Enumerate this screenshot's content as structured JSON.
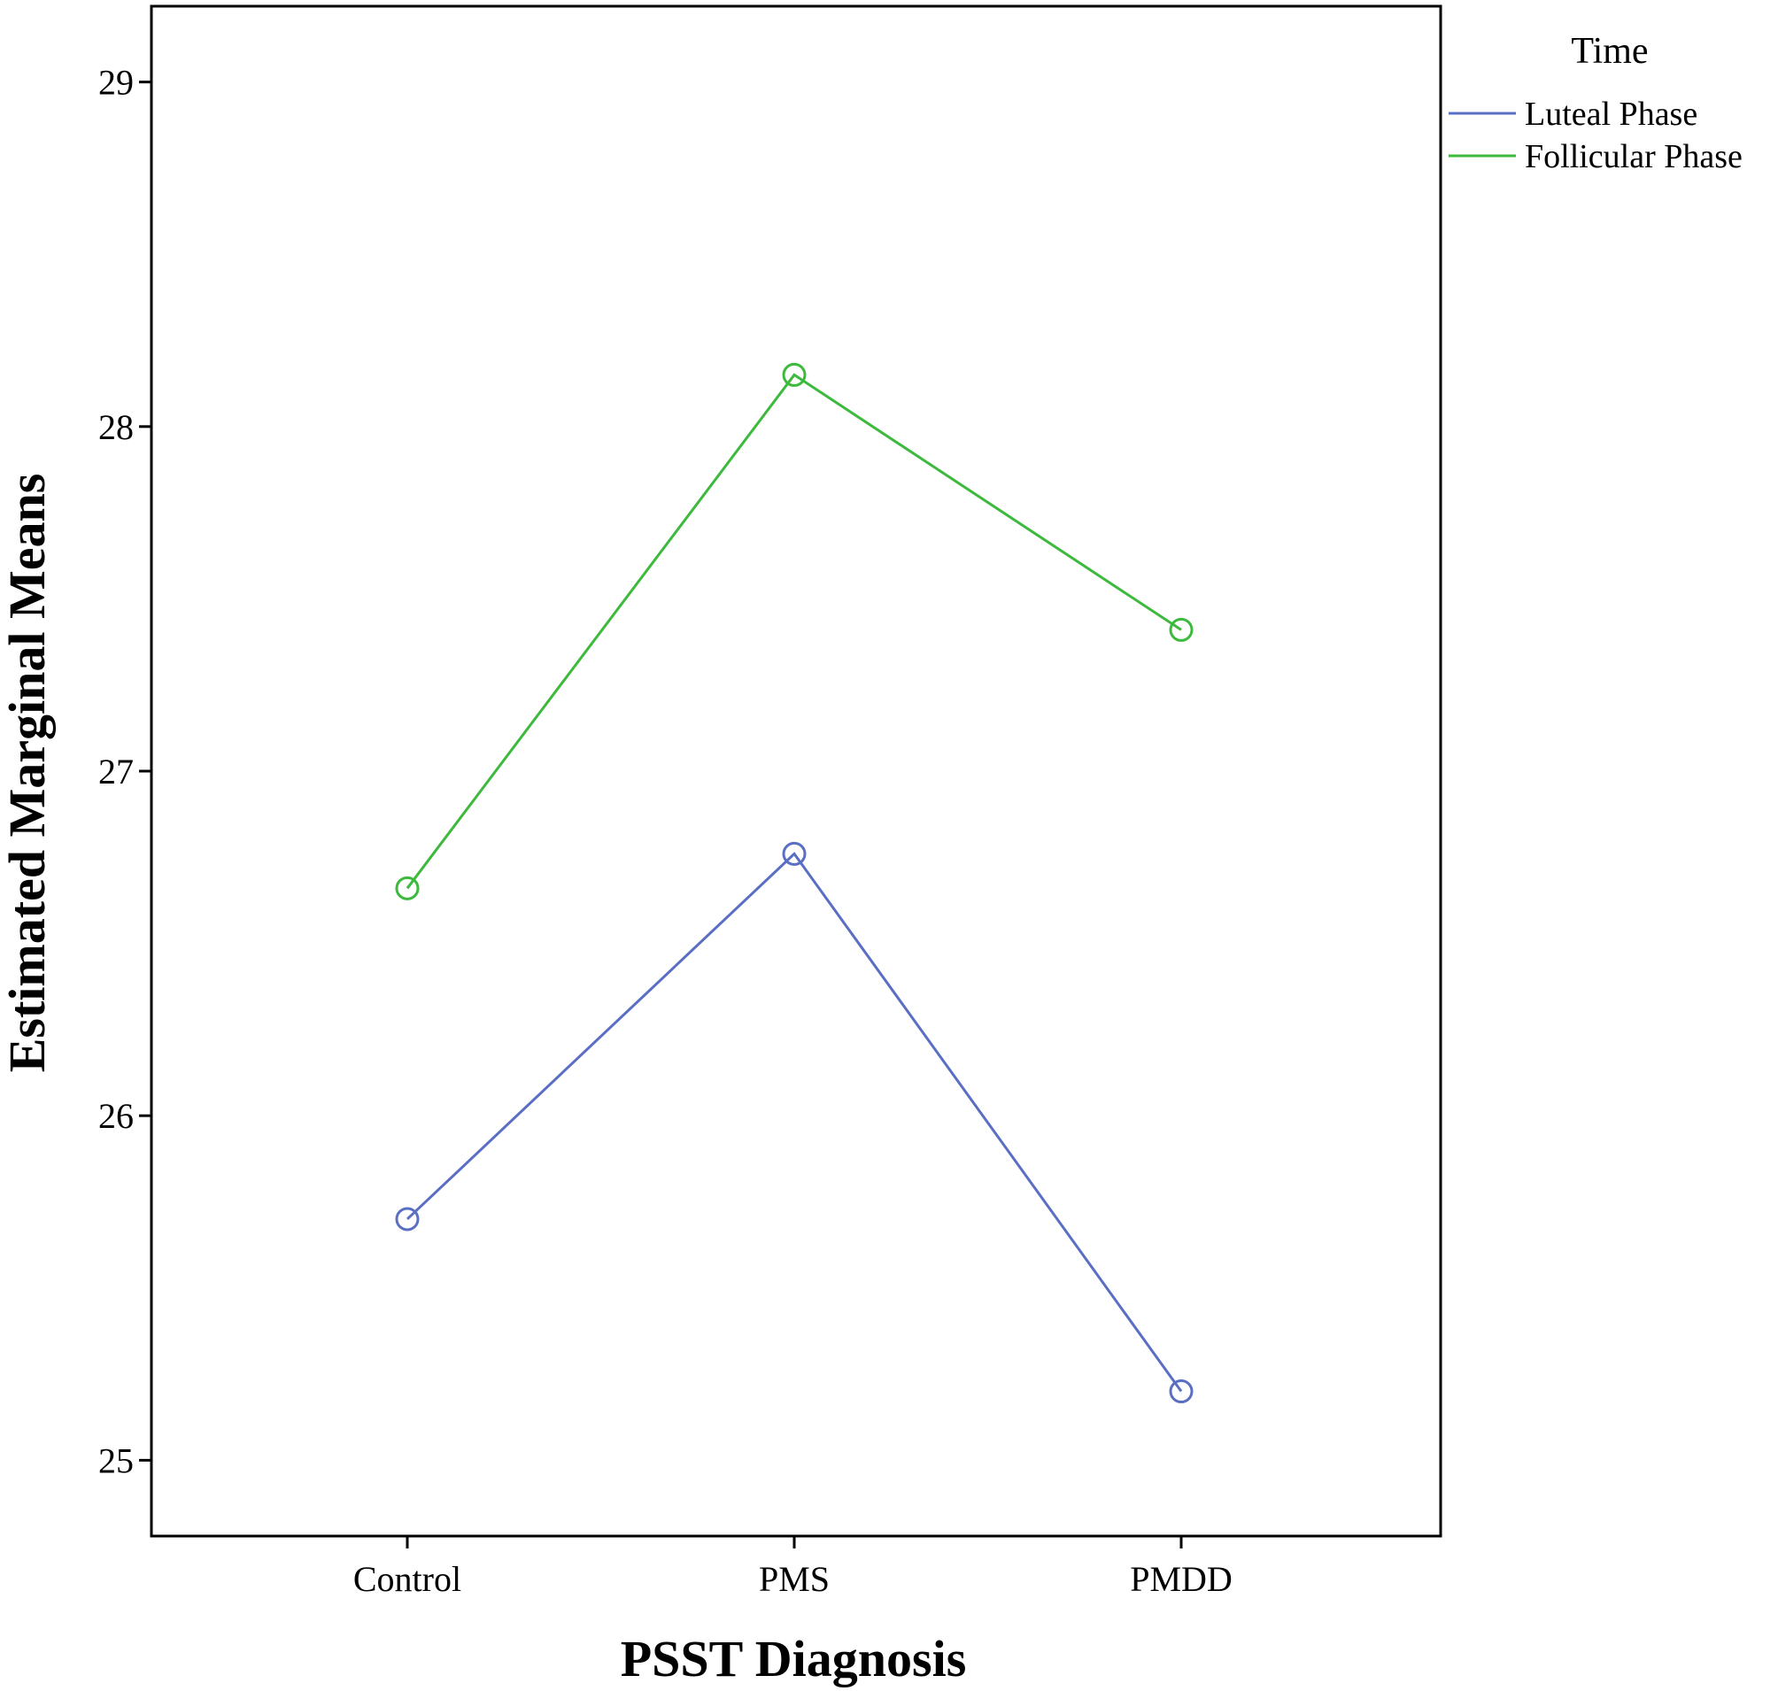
{
  "chart_data": {
    "type": "line",
    "title": "",
    "xlabel": "PSST Diagnosis",
    "ylabel": "Estimated Marginal Means",
    "categories": [
      "Control",
      "PMS",
      "PMDD"
    ],
    "ylim": [
      24.78,
      29.22
    ],
    "yticks": [
      "25",
      "26",
      "27",
      "28",
      "29"
    ],
    "grid": false,
    "legend": {
      "title": "Time",
      "position": "right"
    },
    "series": [
      {
        "name": "Luteal Phase",
        "color": "#5a6fc4",
        "marker": "circle-open",
        "values": [
          25.7,
          26.76,
          25.2
        ]
      },
      {
        "name": "Follicular Phase",
        "color": "#3dba3d",
        "marker": "circle-open",
        "values": [
          26.66,
          28.15,
          27.41
        ]
      }
    ]
  }
}
